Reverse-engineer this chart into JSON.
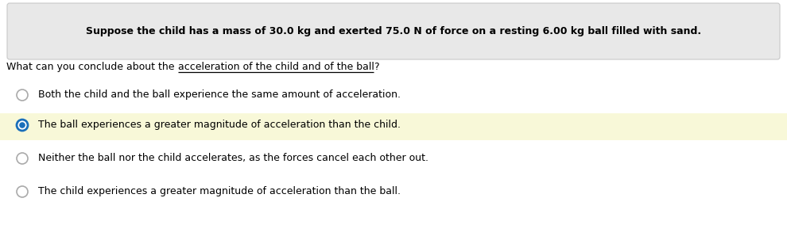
{
  "header_text": "Suppose the child has a mass of 30.0 kg and exerted 75.0 N of force on a resting 6.00 kg ball filled with sand.",
  "header_bg": "#e8e8e8",
  "header_border": "#c8c8c8",
  "question_prefix": "What can you conclude about the ",
  "question_underline": "acceleration of the child and of the ball",
  "question_end": "?",
  "options": [
    "Both the child and the ball experience the same amount of acceleration.",
    "The ball experiences a greater magnitude of acceleration than the child.",
    "Neither the ball nor the child accelerates, as the forces cancel each other out.",
    "The child experiences a greater magnitude of acceleration than the ball."
  ],
  "selected_index": 1,
  "selected_bg": "#f8f8d8",
  "fig_bg": "#ffffff",
  "text_color": "#000000",
  "radio_selected_fill": "#1a6fba",
  "radio_selected_edge": "#1a6fba",
  "radio_unselected_edge": "#aaaaaa",
  "font_size": 9.0,
  "header_font_size": 9.0
}
